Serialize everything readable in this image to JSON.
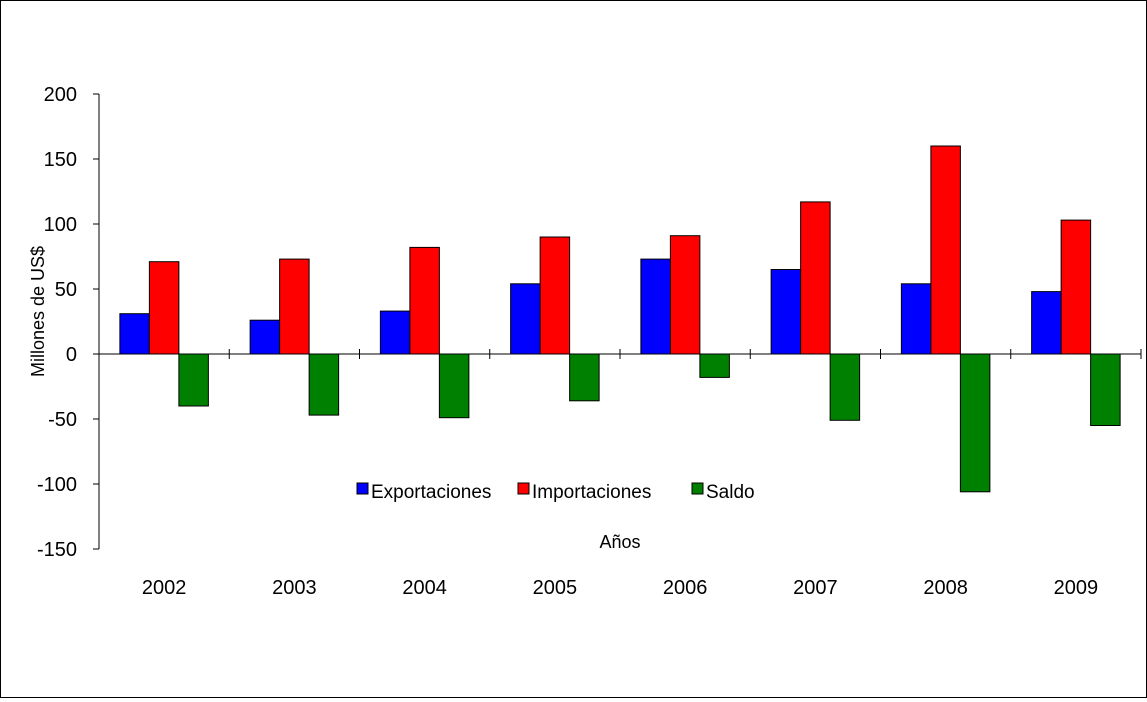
{
  "chart_data": {
    "type": "bar",
    "categories": [
      "2002",
      "2003",
      "2004",
      "2005",
      "2006",
      "2007",
      "2008",
      "2009"
    ],
    "series": [
      {
        "name": "Exportaciones",
        "color": "#0000ff",
        "values": [
          31,
          26,
          33,
          54,
          73,
          65,
          54,
          48
        ]
      },
      {
        "name": "Importaciones",
        "color": "#ff0000",
        "values": [
          71,
          73,
          82,
          90,
          91,
          117,
          160,
          103
        ]
      },
      {
        "name": "Saldo",
        "color": "#008000",
        "values": [
          -40,
          -47,
          -49,
          -36,
          -18,
          -51,
          -106,
          -55
        ]
      }
    ],
    "xlabel": "Años",
    "ylabel": "Millones de US$",
    "ylim": [
      -150,
      200
    ],
    "yticks": [
      200,
      150,
      100,
      50,
      0,
      -50,
      -100,
      -150
    ],
    "ytick_labels": [
      "200",
      "150",
      "100",
      "50",
      "0",
      "-50",
      "-100",
      "-150"
    ],
    "grid": false,
    "legend_position": "lower center, inside plot"
  }
}
